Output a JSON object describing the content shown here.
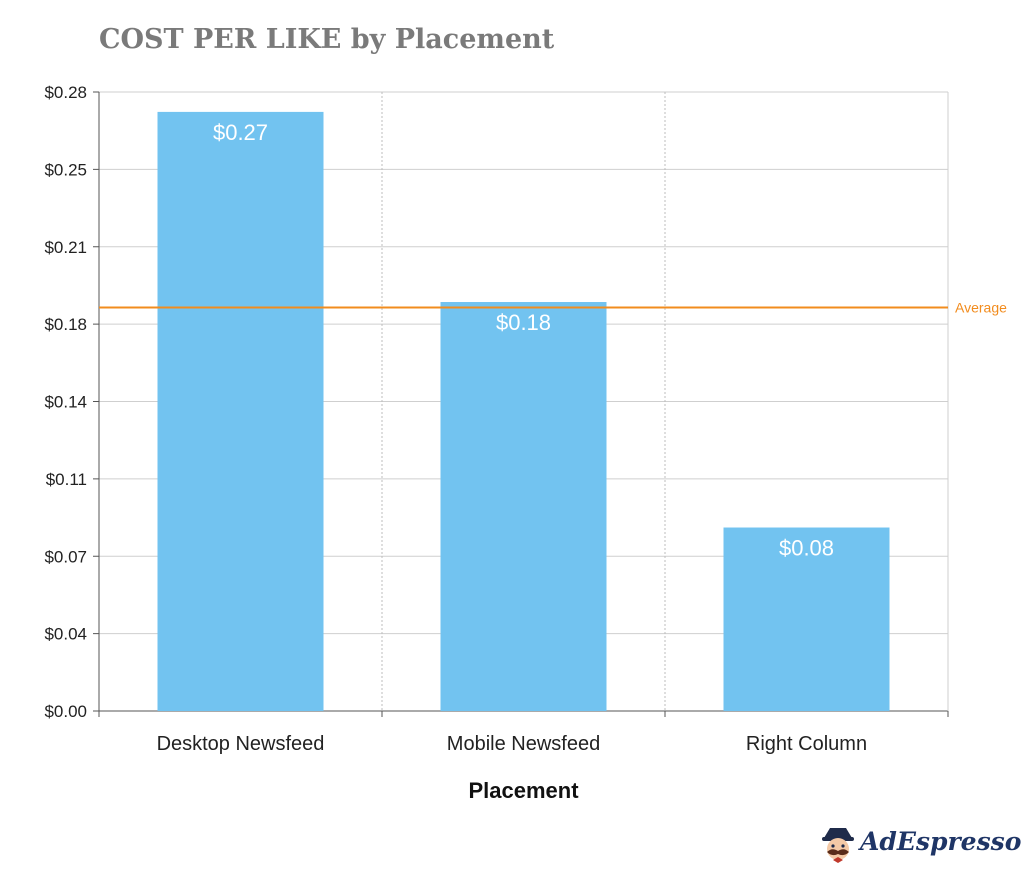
{
  "chart_data": {
    "type": "bar",
    "title": "COST PER LIKE by Placement",
    "xlabel": "Placement",
    "ylabel": "",
    "categories": [
      "Desktop Newsfeed",
      "Mobile Newsfeed",
      "Right Column"
    ],
    "values": [
      0.271,
      0.185,
      0.083
    ],
    "data_labels": [
      "$0.27",
      "$0.18",
      "$0.08"
    ],
    "ylim": [
      0,
      0.28
    ],
    "y_ticks": [
      {
        "value": 0.0,
        "label": "$0.00"
      },
      {
        "value": 0.035,
        "label": "$0.04"
      },
      {
        "value": 0.07,
        "label": "$0.07"
      },
      {
        "value": 0.105,
        "label": "$0.11"
      },
      {
        "value": 0.14,
        "label": "$0.14"
      },
      {
        "value": 0.175,
        "label": "$0.18"
      },
      {
        "value": 0.21,
        "label": "$0.21"
      },
      {
        "value": 0.245,
        "label": "$0.25"
      },
      {
        "value": 0.28,
        "label": "$0.28"
      }
    ],
    "average": {
      "value": 0.1825,
      "label": "Average",
      "color": "#f28c1e"
    },
    "bar_color": "#72c3f0",
    "grid": true,
    "legend": "none"
  },
  "branding": {
    "logo_text": "AdEspresso",
    "logo_icon": "mascot-icon"
  }
}
